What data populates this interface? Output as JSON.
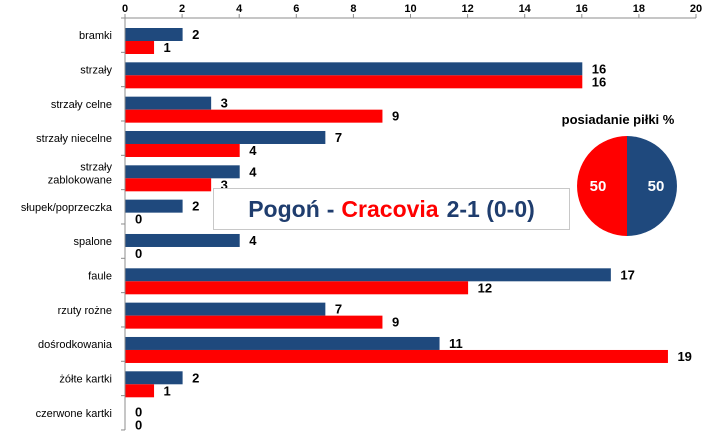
{
  "chart_data": {
    "type": "bar",
    "orientation": "horizontal",
    "categories": [
      "bramki",
      "strzały",
      "strzały celne",
      "strzały niecelne",
      "strzały zablokowane",
      "słupek/poprzeczka",
      "spalone",
      "faule",
      "rzuty rożne",
      "dośrodkowania",
      "żółte kartki",
      "czerwone kartki"
    ],
    "series": [
      {
        "name": "Pogoń",
        "color": "#1f497d",
        "values": [
          2,
          16,
          3,
          7,
          4,
          2,
          4,
          17,
          7,
          11,
          2,
          0
        ]
      },
      {
        "name": "Cracovia",
        "color": "#ff0000",
        "values": [
          1,
          16,
          9,
          4,
          3,
          0,
          0,
          12,
          9,
          19,
          1,
          0
        ]
      }
    ],
    "xlim": [
      0,
      20
    ],
    "xticks": [
      0,
      2,
      4,
      6,
      8,
      10,
      12,
      14,
      16,
      18,
      20
    ],
    "x_axis_position": "top",
    "grid": false,
    "legend": "none"
  },
  "score": {
    "home": "Pogoń",
    "separator": "-",
    "away": "Cracovia",
    "result": "2-1 (0-0)"
  },
  "pie_data": {
    "type": "pie",
    "title": "posiadanie piłki %",
    "slices": [
      {
        "team": "Pogoń",
        "value": 50,
        "color": "#1f497d"
      },
      {
        "team": "Cracovia",
        "value": 50,
        "color": "#ff0000"
      }
    ]
  }
}
